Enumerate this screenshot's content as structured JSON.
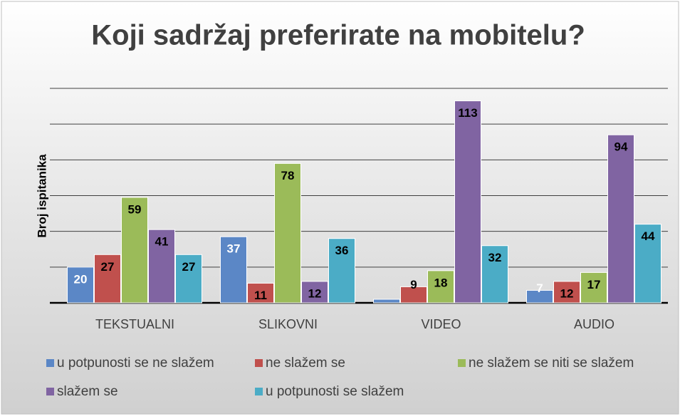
{
  "chart_data": {
    "type": "bar",
    "title": "Koji sadržaj preferirate na mobitelu?",
    "y_label": "Broj ispitanika",
    "categories": [
      "TEKSTUALNI",
      "SLIKOVNI",
      "VIDEO",
      "AUDIO"
    ],
    "series": [
      {
        "name": "u potpunosti se ne slažem",
        "color": "#5b87c6",
        "values": [
          20,
          37,
          2,
          7
        ],
        "value_labels": [
          "20",
          "37",
          null,
          "7"
        ]
      },
      {
        "name": "ne slažem se",
        "color": "#c0504d",
        "values": [
          27,
          11,
          9,
          12
        ]
      },
      {
        "name": "ne slažem se niti se slažem",
        "color": "#9bbb59",
        "values": [
          59,
          78,
          18,
          17
        ]
      },
      {
        "name": "slažem se",
        "color": "#8064a2",
        "values": [
          41,
          12,
          113,
          94
        ]
      },
      {
        "name": "u potpunosti se slažem",
        "color": "#4bacc6",
        "values": [
          27,
          36,
          32,
          44
        ]
      }
    ],
    "ylim": [
      0,
      120
    ],
    "yticks": [
      0,
      20,
      40,
      60,
      80,
      100,
      120
    ],
    "grid": true,
    "tick_labels_shown": false,
    "legend": "bottom"
  }
}
